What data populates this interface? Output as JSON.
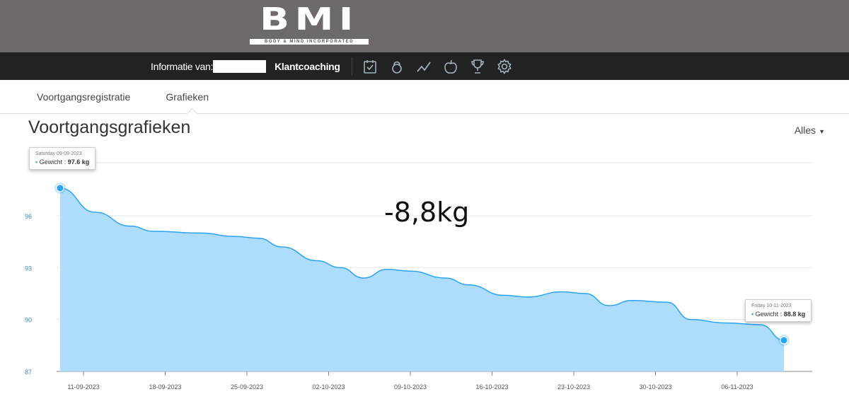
{
  "brand": {
    "logo": "BMI",
    "tagline": "BODY & MIND INCORPORATED"
  },
  "nav": {
    "info_label": "Informatie van:",
    "coaching": "Klantcoaching",
    "icons": [
      "clipboard-check-icon",
      "kettlebell-icon",
      "trend-line-icon",
      "apple-icon",
      "trophy-icon",
      "gear-icon"
    ]
  },
  "tabs": [
    {
      "label": "Voortgangsregistratie"
    },
    {
      "label": "Grafieken",
      "active": true
    }
  ],
  "page": {
    "title": "Voortgangsgrafieken",
    "filter": "Alles",
    "annotation": "-8,8kg"
  },
  "tooltips": [
    {
      "date": "Saturday 09-09-2023",
      "series": "Gewicht",
      "value": "97.6 kg"
    },
    {
      "date": "Friday 10-11-2023",
      "series": "Gewicht",
      "value": "88.8 kg"
    }
  ],
  "chart_data": {
    "type": "area",
    "color": "#2aa4f4",
    "fill": "#aedcfb",
    "ylim": [
      87,
      98.5
    ],
    "yticks": [
      "87",
      "90",
      "93",
      "96"
    ],
    "xticks": [
      "11-09-2023",
      "18-09-2023",
      "25-09-2023",
      "02-10-2023",
      "09-10-2023",
      "16-10-2023",
      "23-10-2023",
      "30-10-2023",
      "06-11-2023"
    ],
    "series": [
      {
        "name": "Gewicht",
        "points": [
          [
            "2023-09-09",
            97.6
          ],
          [
            "2023-09-12",
            96.2
          ],
          [
            "2023-09-15",
            95.4
          ],
          [
            "2023-09-17",
            95.1
          ],
          [
            "2023-09-21",
            95.0
          ],
          [
            "2023-09-24",
            94.8
          ],
          [
            "2023-09-26",
            94.7
          ],
          [
            "2023-09-28",
            94.2
          ],
          [
            "2023-10-01",
            93.4
          ],
          [
            "2023-10-03",
            93.0
          ],
          [
            "2023-10-05",
            92.4
          ],
          [
            "2023-10-07",
            92.9
          ],
          [
            "2023-10-09",
            92.8
          ],
          [
            "2023-10-12",
            92.4
          ],
          [
            "2023-10-14",
            92.0
          ],
          [
            "2023-10-17",
            91.4
          ],
          [
            "2023-10-19",
            91.3
          ],
          [
            "2023-10-22",
            91.6
          ],
          [
            "2023-10-24",
            91.5
          ],
          [
            "2023-10-26",
            90.8
          ],
          [
            "2023-10-28",
            91.1
          ],
          [
            "2023-10-31",
            91.0
          ],
          [
            "2023-11-02",
            90.0
          ],
          [
            "2023-11-05",
            89.8
          ],
          [
            "2023-11-08",
            89.7
          ],
          [
            "2023-11-10",
            88.8
          ]
        ]
      }
    ]
  }
}
